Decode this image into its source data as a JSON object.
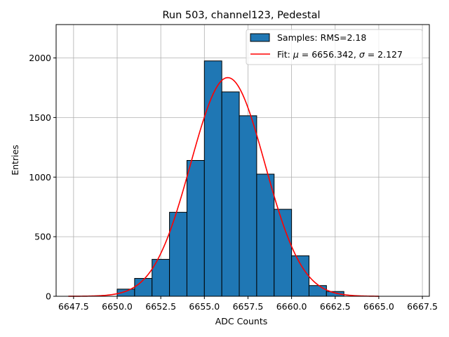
{
  "chart_data": {
    "type": "bar",
    "title": "Run 503, channel123, Pedestal",
    "xlabel": "ADC Counts",
    "ylabel": "Entries",
    "xlim": [
      6646.5,
      6667.9
    ],
    "ylim": [
      0,
      2280
    ],
    "grid": true,
    "xticks": [
      6647.5,
      6650.0,
      6652.5,
      6655.0,
      6657.5,
      6660.0,
      6662.5,
      6665.0,
      6667.5
    ],
    "xtick_labels": [
      "6647.5",
      "6650.0",
      "6652.5",
      "6655.0",
      "6657.5",
      "6660.0",
      "6662.5",
      "6665.0",
      "6667.5"
    ],
    "yticks": [
      0,
      500,
      1000,
      1500,
      2000
    ],
    "ytick_labels": [
      "0",
      "500",
      "1000",
      "1500",
      "2000"
    ],
    "histogram": {
      "name": "Samples",
      "color": "#1f77b4",
      "edge_color": "#000000",
      "bin_edges": [
        6650,
        6651,
        6652,
        6653,
        6654,
        6655,
        6656,
        6657,
        6658,
        6659,
        6660,
        6661,
        6662,
        6663
      ],
      "counts": [
        60,
        150,
        310,
        705,
        1140,
        1975,
        1715,
        1515,
        1025,
        730,
        340,
        90,
        40
      ]
    },
    "fit": {
      "name": "Fit",
      "color": "#ff0000",
      "mu": 6656.342,
      "sigma": 2.127,
      "amplitude": 1835,
      "x_range": [
        6647.2,
        6665.0
      ]
    },
    "legend": {
      "position": "top-right",
      "entries": [
        {
          "label_prefix": "Samples: RMS=",
          "value": "2.18"
        },
        {
          "label_prefix": "Fit: ",
          "mu_symbol": "μ",
          "mu_text": " = 6656.342, ",
          "sigma_symbol": "σ",
          "sigma_text": " = 2.127"
        }
      ]
    }
  }
}
